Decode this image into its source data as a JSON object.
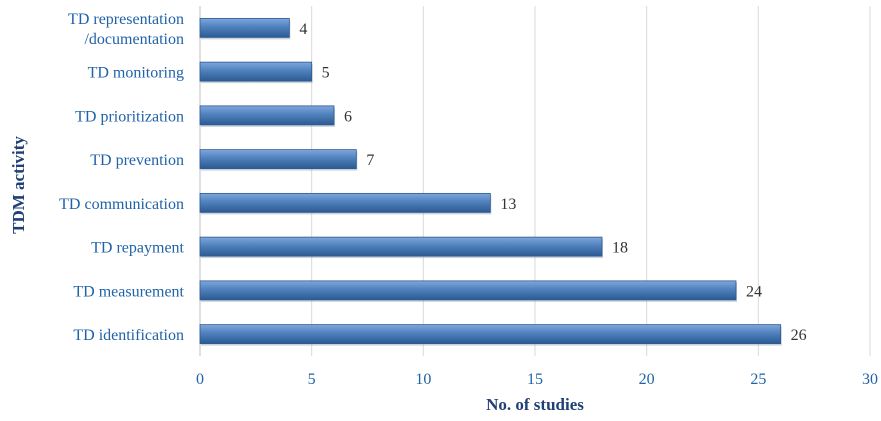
{
  "chart_data": {
    "type": "bar",
    "orientation": "horizontal",
    "title": "",
    "xlabel": "No. of studies",
    "ylabel": "TDM activity",
    "categories": [
      "TD representation\n/documentation",
      "TD monitoring",
      "TD prioritization",
      "TD prevention",
      "TD communication",
      "TD repayment",
      "TD measurement",
      "TD identification"
    ],
    "values": [
      4,
      5,
      6,
      7,
      13,
      18,
      24,
      26
    ],
    "xlim": [
      0,
      30
    ],
    "xticks": [
      0,
      5,
      10,
      15,
      20,
      25,
      30
    ],
    "grid": "vertical",
    "legend": "none",
    "data_labels": true,
    "colors": {
      "bar": "#4f81bd",
      "bar_light": "#7fa7dc",
      "bar_dark": "#2c5a92",
      "label_text": "#1f62a8",
      "axis_title": "#1f3f75",
      "grid": "#d9d9d9"
    }
  }
}
